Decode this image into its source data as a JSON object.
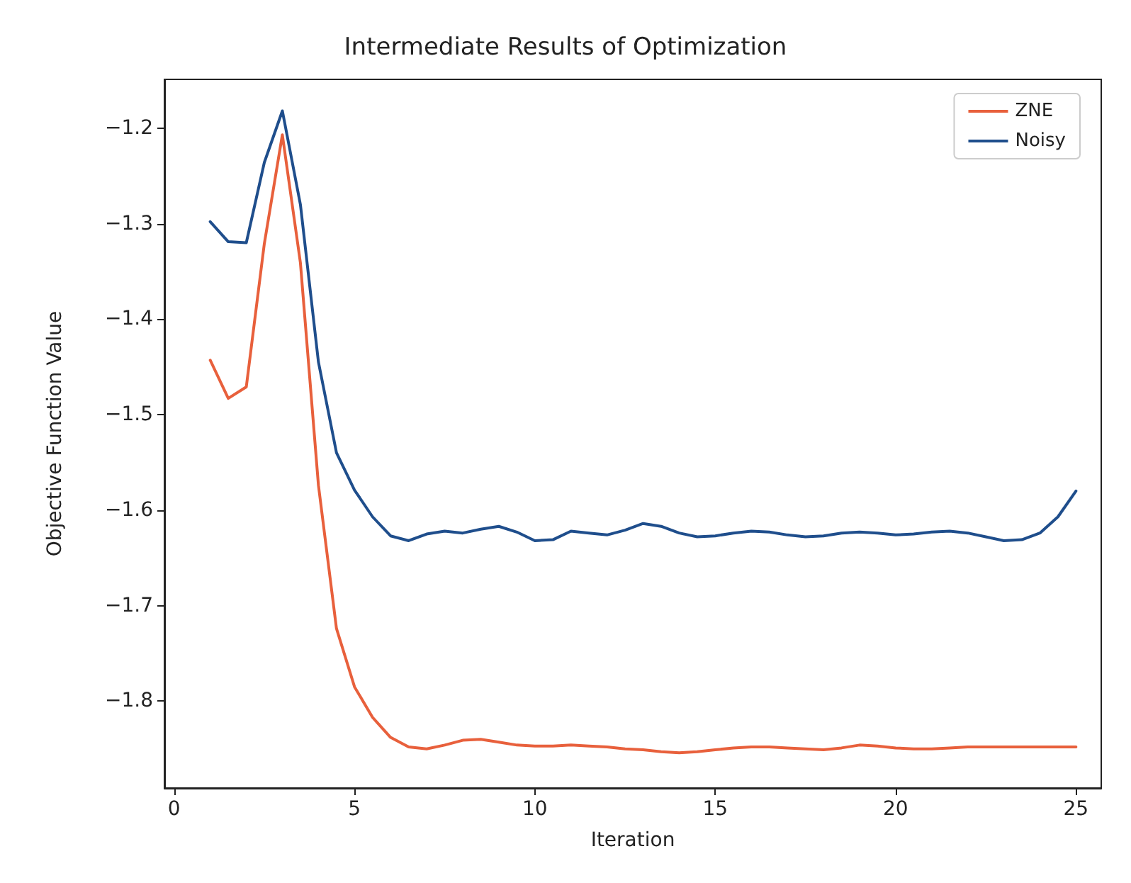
{
  "chart_data": {
    "type": "line",
    "title": "Intermediate Results of Optimization",
    "xlabel": "Iteration",
    "ylabel": "Objective Function Value",
    "x": [
      1,
      1.5,
      2,
      2.5,
      3,
      3.5,
      4,
      4.5,
      5,
      5.5,
      6,
      6.5,
      7,
      7.5,
      8,
      8.5,
      9,
      9.5,
      10,
      10.5,
      11,
      11.5,
      12,
      12.5,
      13,
      13.5,
      14,
      14.5,
      15,
      15.5,
      16,
      16.5,
      17,
      17.5,
      18,
      18.5,
      19,
      19.5,
      20,
      20.5,
      21,
      21.5,
      22,
      22.5,
      23,
      23.5,
      24,
      24.5,
      25
    ],
    "series": [
      {
        "name": "ZNE",
        "color": "#e8603c",
        "values": [
          -1.443,
          -1.483,
          -1.471,
          -1.321,
          -1.207,
          -1.341,
          -1.574,
          -1.724,
          -1.785,
          -1.817,
          -1.838,
          -1.848,
          -1.85,
          -1.846,
          -1.841,
          -1.84,
          -1.843,
          -1.846,
          -1.847,
          -1.847,
          -1.846,
          -1.847,
          -1.848,
          -1.85,
          -1.851,
          -1.853,
          -1.854,
          -1.853,
          -1.851,
          -1.849,
          -1.848,
          -1.848,
          -1.849,
          -1.85,
          -1.851,
          -1.849,
          -1.846,
          -1.847,
          -1.849,
          -1.85,
          -1.85,
          -1.849,
          -1.848,
          -1.848,
          -1.848,
          -1.848,
          -1.848,
          -1.848,
          -1.848
        ]
      },
      {
        "name": "Noisy",
        "color": "#1f4e8c",
        "values": [
          -1.298,
          -1.319,
          -1.32,
          -1.236,
          -1.182,
          -1.28,
          -1.445,
          -1.54,
          -1.579,
          -1.607,
          -1.627,
          -1.632,
          -1.625,
          -1.622,
          -1.624,
          -1.62,
          -1.617,
          -1.623,
          -1.632,
          -1.631,
          -1.622,
          -1.624,
          -1.626,
          -1.621,
          -1.614,
          -1.617,
          -1.624,
          -1.628,
          -1.627,
          -1.624,
          -1.622,
          -1.623,
          -1.626,
          -1.628,
          -1.627,
          -1.624,
          -1.623,
          -1.624,
          -1.626,
          -1.625,
          -1.623,
          -1.622,
          -1.624,
          -1.628,
          -1.632,
          -1.631,
          -1.624,
          -1.607,
          -1.58
        ]
      }
    ],
    "xlim": [
      -0.27,
      25.7
    ],
    "xticks": [
      0,
      5,
      10,
      15,
      20,
      25
    ],
    "ylim": [
      -1.891,
      -1.149
    ],
    "yticks": [
      -1.8,
      -1.7,
      -1.6,
      -1.5,
      -1.4,
      -1.3,
      -1.2
    ],
    "legend": "top right",
    "marker": "none",
    "line_style": "solid",
    "grid": false
  }
}
